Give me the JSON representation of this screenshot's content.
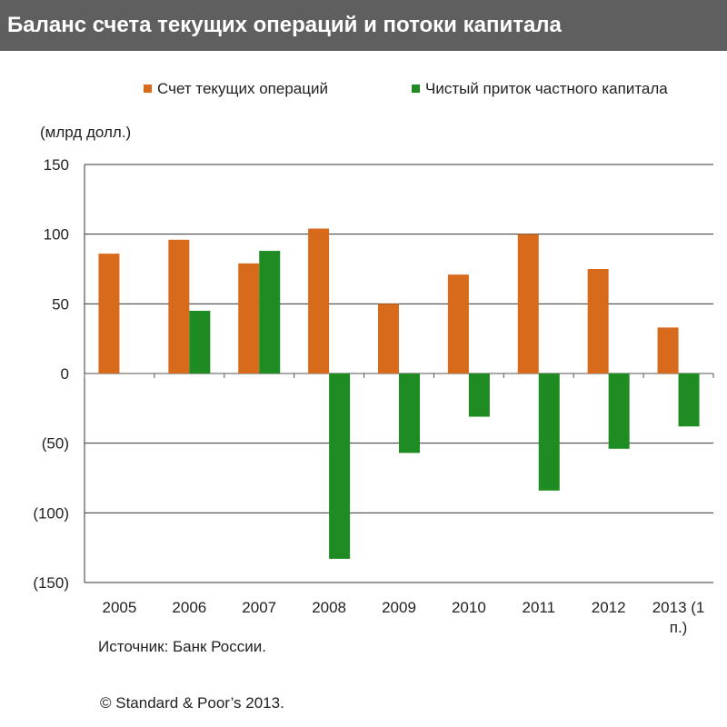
{
  "header": {
    "title": "Баланс счета текущих операций и потоки капитала"
  },
  "unit_label": "(млрд долл.)",
  "footer": {
    "source": "Источник: Банк России.",
    "copyright": "© Standard & Poor’s 2013."
  },
  "colors": {
    "series_current_account": "#d86a1c",
    "series_capital": "#1e8c22",
    "title_bg": "#5f5f5f"
  },
  "chart_data": {
    "type": "bar",
    "categories": [
      "2005",
      "2006",
      "2007",
      "2008",
      "2009",
      "2010",
      "2011",
      "2012",
      "2013 (1 п.)"
    ],
    "category_lines": [
      [
        "2005"
      ],
      [
        "2006"
      ],
      [
        "2007"
      ],
      [
        "2008"
      ],
      [
        "2009"
      ],
      [
        "2010"
      ],
      [
        "2011"
      ],
      [
        "2012"
      ],
      [
        "2013 (1",
        "п.)"
      ]
    ],
    "series": [
      {
        "name": "Счет текущих операций",
        "color": "#d86a1c",
        "values": [
          86,
          96,
          79,
          104,
          50,
          71,
          100,
          75,
          33
        ]
      },
      {
        "name": "Чистый приток частного капитала",
        "color": "#1e8c22",
        "values": [
          0,
          45,
          88,
          -133,
          -57,
          -31,
          -84,
          -54,
          -38
        ]
      }
    ],
    "yticks": [
      150,
      100,
      50,
      0,
      -50,
      -100,
      -150
    ],
    "ytick_labels": [
      "150",
      "100",
      "50",
      "0",
      "(50)",
      "(100)",
      "(150)"
    ],
    "ylim": [
      -150,
      150
    ],
    "legend_position": "top",
    "grid": true
  }
}
